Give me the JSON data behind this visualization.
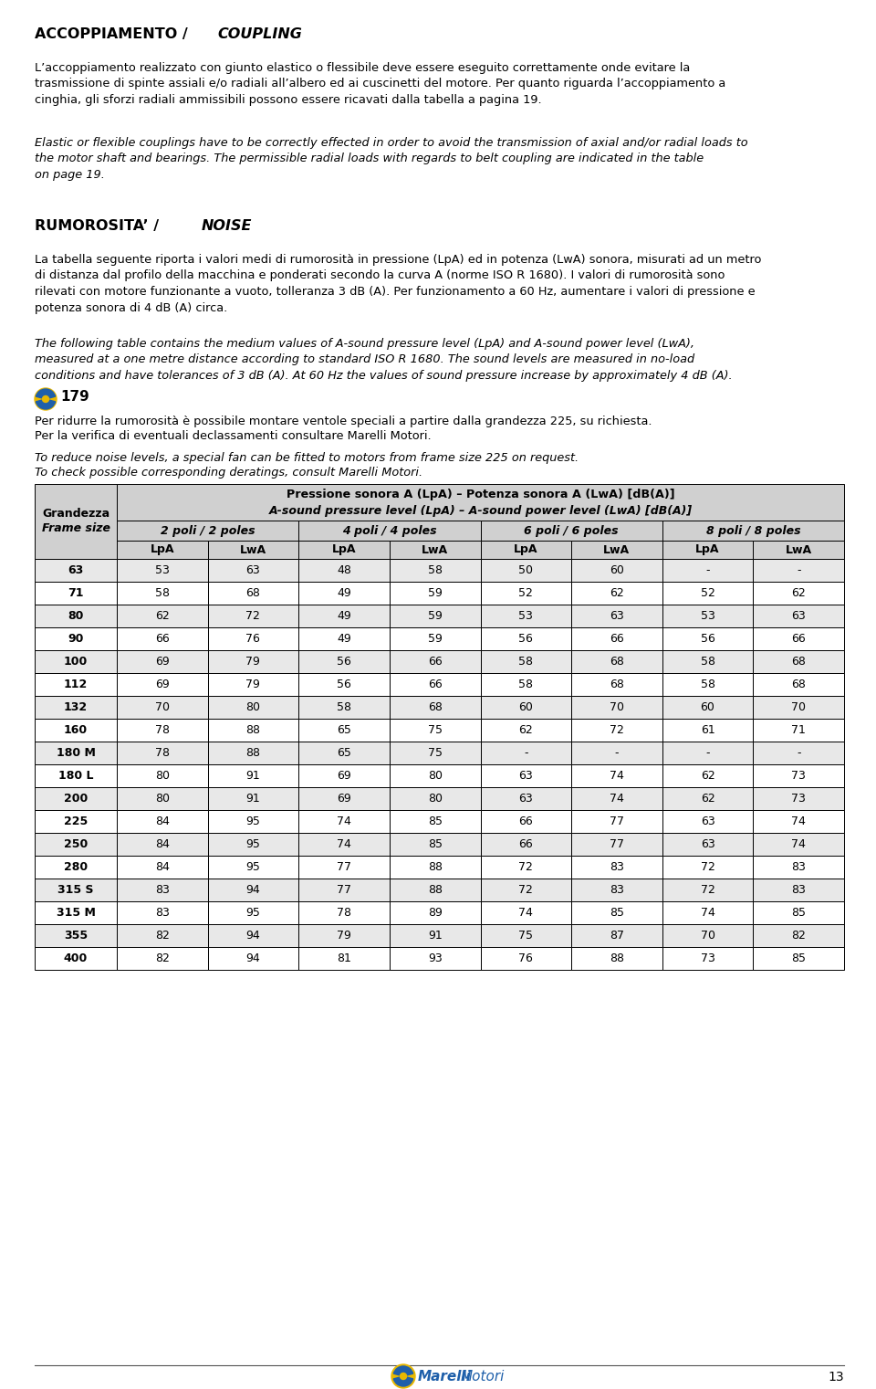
{
  "title_bold": "ACCOPPIAMENTO / ",
  "title_italic": "COUPLING",
  "para1": "L’accoppiamento realizzato con giunto elastico o flessibile deve essere eseguito correttamente onde evitare la\ntrasmissione di spinte assiali e/o radiali all’albero ed ai cuscinetti del motore. Per quanto riguarda l’accoppiamento a\ncinghia, gli sforzi radiali ammissibili possono essere ricavati dalla tabella a pagina 19.",
  "para2_italic": "Elastic or flexible couplings have to be correctly effected in order to avoid the transmission of axial and/or radial loads to\nthe motor shaft and bearings. The permissible radial loads with regards to belt coupling are indicated in the table\non page 19.",
  "title2_bold": "RUMOROSITA’ / ",
  "title2_italic": "NOISE",
  "para3": "La tabella seguente riporta i valori medi di rumorosità in pressione (LpA) ed in potenza (LwA) sonora, misurati ad un metro\ndi distanza dal profilo della macchina e ponderati secondo la curva A (norme ISO R 1680). I valori di rumorosità sono\nrilevati con motore funzionante a vuoto, tolleranza 3 dB (A). Per funzionamento a 60 Hz, aumentare i valori di pressione e\npotenza sonora di 4 dB (A) circa.",
  "para4_italic": "The following table contains the medium values of A-sound pressure level (LpA) and A-sound power level (LwA),\nmeasured at a one metre distance according to standard ISO R 1680. The sound levels are measured in no-load\nconditions and have tolerances of 3 dB (A). At 60 Hz the values of sound pressure increase by approximately 4 dB (A).",
  "noise_icon_text": "179",
  "para5a": "Per ridurre la rumorosità è possibile montare ventole speciali a partire dalla grandezza 225, su richiesta.",
  "para5b": "Per la verifica di eventuali declassamenti consultare Marelli Motori.",
  "para6a_italic": "To reduce noise levels, a special fan can be fitted to motors from frame size 225 on request.",
  "para6b_italic": "To check possible corresponding deratings, consult Marelli Motori.",
  "table_header2": "Pressione sonora A (LpA) – Potenza sonora A (LwA) [dB(A)]",
  "table_header2_italic": "A-sound pressure level (LpA) – A-sound power level (LwA) [dB(A)]",
  "col_groups": [
    "2 poli / 2 poles",
    "4 poli / 4 poles",
    "6 poli / 6 poles",
    "8 poli / 8 poles"
  ],
  "col_sub": [
    "LpA",
    "LwA",
    "LpA",
    "LwA",
    "LpA",
    "LwA",
    "LpA",
    "LwA"
  ],
  "rows": [
    [
      "63",
      "53",
      "63",
      "48",
      "58",
      "50",
      "60",
      "-",
      "-"
    ],
    [
      "71",
      "58",
      "68",
      "49",
      "59",
      "52",
      "62",
      "52",
      "62"
    ],
    [
      "80",
      "62",
      "72",
      "49",
      "59",
      "53",
      "63",
      "53",
      "63"
    ],
    [
      "90",
      "66",
      "76",
      "49",
      "59",
      "56",
      "66",
      "56",
      "66"
    ],
    [
      "100",
      "69",
      "79",
      "56",
      "66",
      "58",
      "68",
      "58",
      "68"
    ],
    [
      "112",
      "69",
      "79",
      "56",
      "66",
      "58",
      "68",
      "58",
      "68"
    ],
    [
      "132",
      "70",
      "80",
      "58",
      "68",
      "60",
      "70",
      "60",
      "70"
    ],
    [
      "160",
      "78",
      "88",
      "65",
      "75",
      "62",
      "72",
      "61",
      "71"
    ],
    [
      "180 M",
      "78",
      "88",
      "65",
      "75",
      "-",
      "-",
      "-",
      "-"
    ],
    [
      "180 L",
      "80",
      "91",
      "69",
      "80",
      "63",
      "74",
      "62",
      "73"
    ],
    [
      "200",
      "80",
      "91",
      "69",
      "80",
      "63",
      "74",
      "62",
      "73"
    ],
    [
      "225",
      "84",
      "95",
      "74",
      "85",
      "66",
      "77",
      "63",
      "74"
    ],
    [
      "250",
      "84",
      "95",
      "74",
      "85",
      "66",
      "77",
      "63",
      "74"
    ],
    [
      "280",
      "84",
      "95",
      "77",
      "88",
      "72",
      "83",
      "72",
      "83"
    ],
    [
      "315 S",
      "83",
      "94",
      "77",
      "88",
      "72",
      "83",
      "72",
      "83"
    ],
    [
      "315 M",
      "83",
      "95",
      "78",
      "89",
      "74",
      "85",
      "74",
      "85"
    ],
    [
      "355",
      "82",
      "94",
      "79",
      "91",
      "75",
      "87",
      "70",
      "82"
    ],
    [
      "400",
      "82",
      "94",
      "81",
      "93",
      "76",
      "88",
      "73",
      "85"
    ]
  ],
  "bg_color": "#ffffff",
  "text_color": "#000000",
  "page_number": "13"
}
